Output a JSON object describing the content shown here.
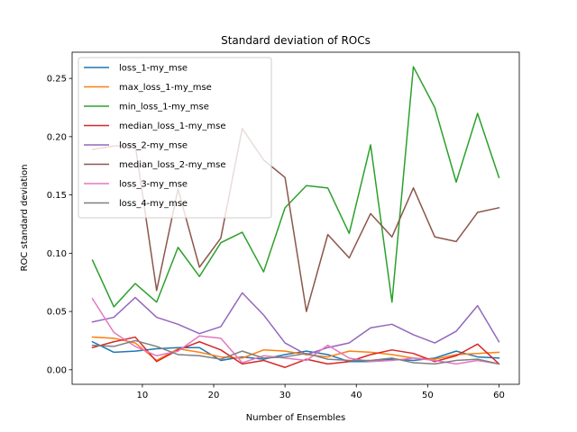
{
  "chart_data": {
    "type": "line",
    "title": "Standard deviation of ROCs",
    "xlabel": "Number of Ensembles",
    "ylabel": "ROC standard deviation",
    "xlim": [
      0.15,
      62.85
    ],
    "ylim": [
      -0.0125,
      0.2725
    ],
    "x_ticks": [
      10,
      20,
      30,
      40,
      50,
      60
    ],
    "y_ticks": [
      0.0,
      0.05,
      0.1,
      0.15,
      0.2,
      0.25
    ],
    "x_tick_labels": [
      "10",
      "20",
      "30",
      "40",
      "50",
      "60"
    ],
    "y_tick_labels": [
      "0.00",
      "0.05",
      "0.10",
      "0.15",
      "0.20",
      "0.25"
    ],
    "grid": false,
    "legend_position": "upper-left",
    "x": [
      3,
      6,
      9,
      12,
      15,
      18,
      21,
      24,
      27,
      30,
      33,
      36,
      39,
      42,
      45,
      48,
      51,
      54,
      57,
      60
    ],
    "series": [
      {
        "name": "loss_1-my_mse",
        "color": "#1f77b4",
        "values": [
          0.024,
          0.015,
          0.016,
          0.018,
          0.019,
          0.019,
          0.008,
          0.011,
          0.009,
          0.013,
          0.016,
          0.013,
          0.007,
          0.007,
          0.009,
          0.008,
          0.01,
          0.016,
          0.011,
          0.01
        ]
      },
      {
        "name": "max_loss_1-my_mse",
        "color": "#ff7f0e",
        "values": [
          0.028,
          0.027,
          0.023,
          0.008,
          0.018,
          0.015,
          0.011,
          0.01,
          0.017,
          0.016,
          0.013,
          0.011,
          0.016,
          0.015,
          0.013,
          0.01,
          0.009,
          0.013,
          0.014,
          0.015
        ]
      },
      {
        "name": "min_loss_1-my_mse",
        "color": "#2ca02c",
        "values": [
          0.094,
          0.054,
          0.074,
          0.058,
          0.105,
          0.08,
          0.109,
          0.118,
          0.084,
          0.139,
          0.158,
          0.156,
          0.117,
          0.193,
          0.058,
          0.26,
          0.225,
          0.161,
          0.22,
          0.165
        ]
      },
      {
        "name": "median_loss_1-my_mse",
        "color": "#d62728",
        "values": [
          0.019,
          0.024,
          0.028,
          0.007,
          0.017,
          0.024,
          0.017,
          0.005,
          0.008,
          0.002,
          0.009,
          0.005,
          0.007,
          0.013,
          0.017,
          0.014,
          0.007,
          0.012,
          0.022,
          0.005
        ]
      },
      {
        "name": "loss_2-my_mse",
        "color": "#9467bd",
        "values": [
          0.041,
          0.045,
          0.062,
          0.045,
          0.039,
          0.031,
          0.037,
          0.066,
          0.047,
          0.023,
          0.013,
          0.019,
          0.023,
          0.036,
          0.039,
          0.03,
          0.023,
          0.033,
          0.055,
          0.024
        ]
      },
      {
        "name": "median_loss_2-my_mse",
        "color": "#8c564b",
        "values": [
          0.189,
          0.192,
          0.193,
          0.068,
          0.155,
          0.088,
          0.113,
          0.207,
          0.18,
          0.165,
          0.05,
          0.116,
          0.096,
          0.134,
          0.114,
          0.156,
          0.114,
          0.11,
          0.135,
          0.139
        ]
      },
      {
        "name": "loss_3-my_mse",
        "color": "#e377c2",
        "values": [
          0.061,
          0.032,
          0.02,
          0.012,
          0.016,
          0.029,
          0.027,
          0.006,
          0.012,
          0.01,
          0.008,
          0.021,
          0.01,
          0.007,
          0.008,
          0.01,
          0.008,
          0.005,
          0.008,
          0.005
        ]
      },
      {
        "name": "loss_4-my_mse",
        "color": "#7f7f7f",
        "values": [
          0.021,
          0.02,
          0.025,
          0.02,
          0.013,
          0.012,
          0.009,
          0.016,
          0.01,
          0.011,
          0.014,
          0.009,
          0.008,
          0.008,
          0.01,
          0.006,
          0.005,
          0.008,
          0.009,
          0.005
        ]
      }
    ]
  }
}
